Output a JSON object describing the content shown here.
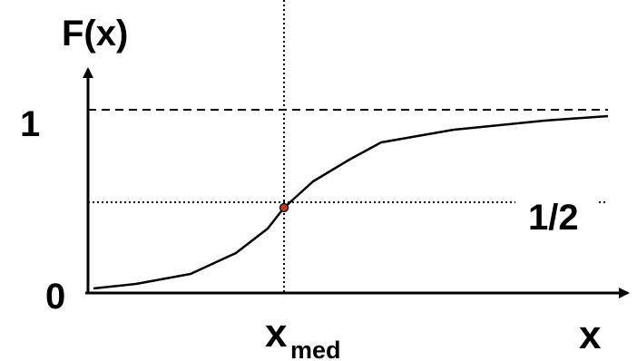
{
  "labels": {
    "y_axis": "F(x)",
    "x_axis": "x",
    "y_tick_top": "1",
    "y_tick_bottom": "0",
    "half_level": "1/2",
    "median_base": "x",
    "median_subscript": "med"
  },
  "colors": {
    "line": "#000000",
    "median_point": "#c0392b",
    "background": "#ffffff"
  },
  "curve": {
    "type": "cumulative-distribution",
    "upper_level": 1,
    "half_level": 0.5,
    "lower_level": 0,
    "median_marked": true
  }
}
